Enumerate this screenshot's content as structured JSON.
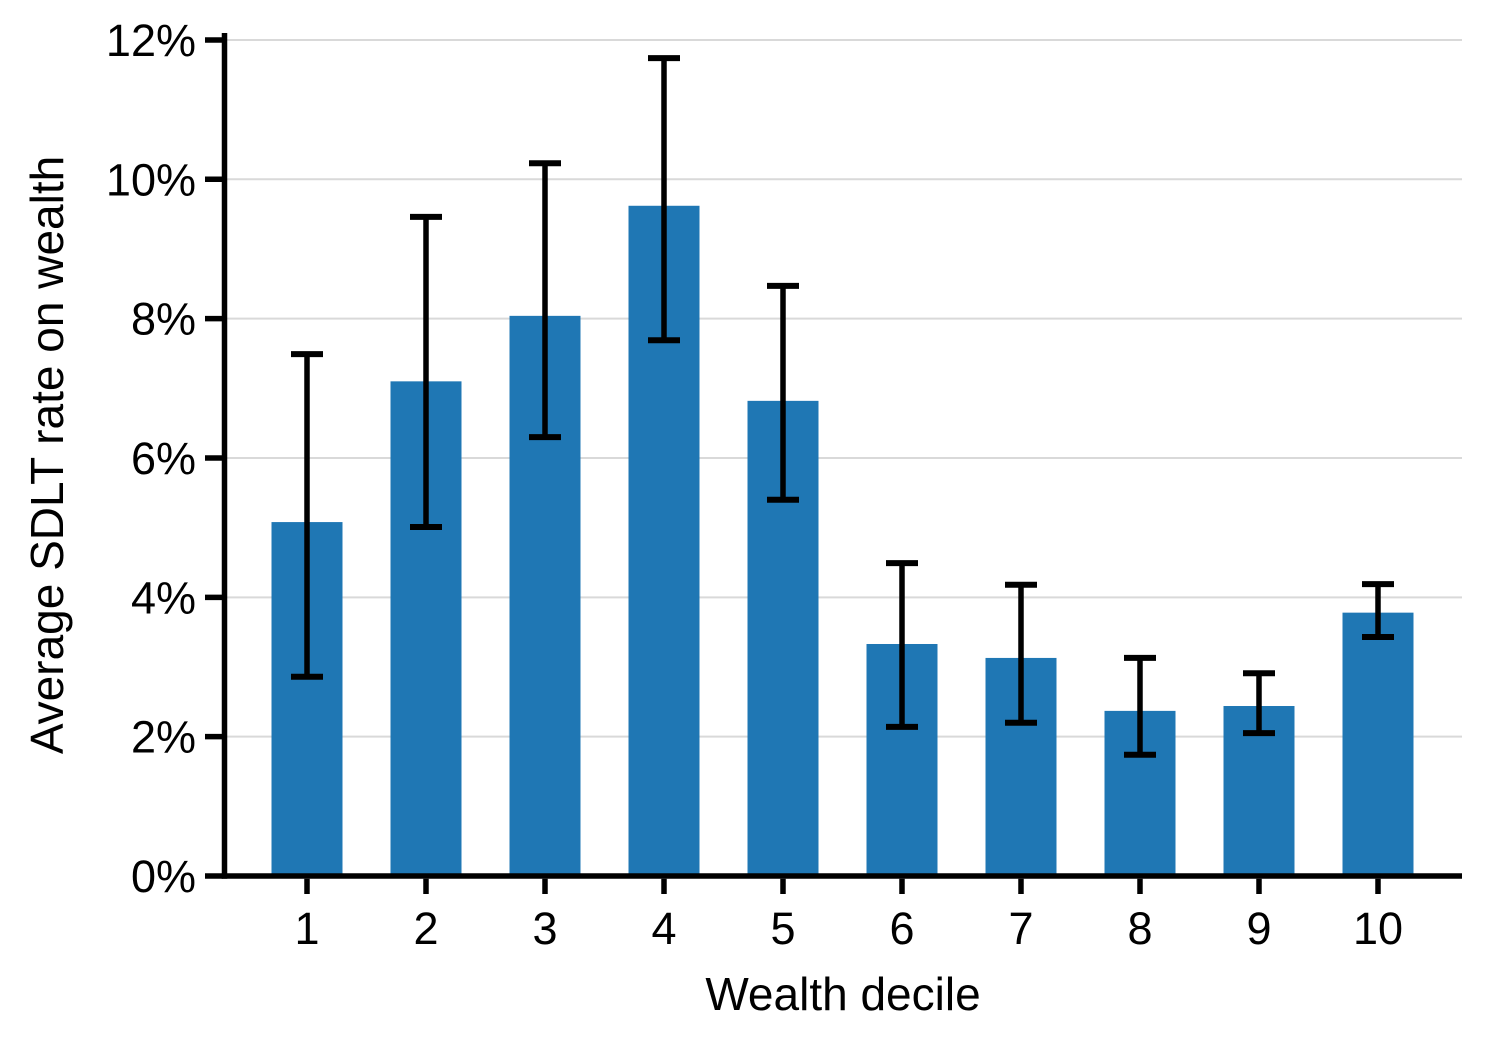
{
  "figure": {
    "title": "",
    "background": "#ffffff"
  },
  "chart_data": {
    "type": "bar",
    "categories": [
      "1",
      "2",
      "3",
      "4",
      "5",
      "6",
      "7",
      "8",
      "9",
      "10"
    ],
    "values": [
      5.08,
      7.1,
      8.04,
      9.62,
      6.82,
      3.33,
      3.13,
      2.37,
      2.44,
      3.78
    ],
    "error_low": [
      2.86,
      5.01,
      6.3,
      7.69,
      5.4,
      2.14,
      2.2,
      1.74,
      2.05,
      3.43
    ],
    "error_high": [
      7.49,
      9.46,
      10.23,
      11.74,
      8.47,
      4.49,
      4.18,
      3.13,
      2.91,
      4.19
    ],
    "title": "",
    "xlabel": "Wealth decile",
    "ylabel": "Average SDLT rate on wealth",
    "ylim": [
      0,
      12.1
    ],
    "yticks": [
      0,
      2,
      4,
      6,
      8,
      10,
      12
    ],
    "ytick_labels": [
      "0%",
      "2%",
      "4%",
      "6%",
      "8%",
      "10%",
      "12%"
    ],
    "grid": "horizontal-only",
    "legend_position": "none",
    "error_bar_style": "symmetric-caps",
    "colors": {
      "bar": "#1f77b4",
      "error_bar": "#000000",
      "grid_line": "#d9d9d9",
      "axis": "#000000",
      "text": "#000000",
      "background": "#ffffff"
    }
  }
}
